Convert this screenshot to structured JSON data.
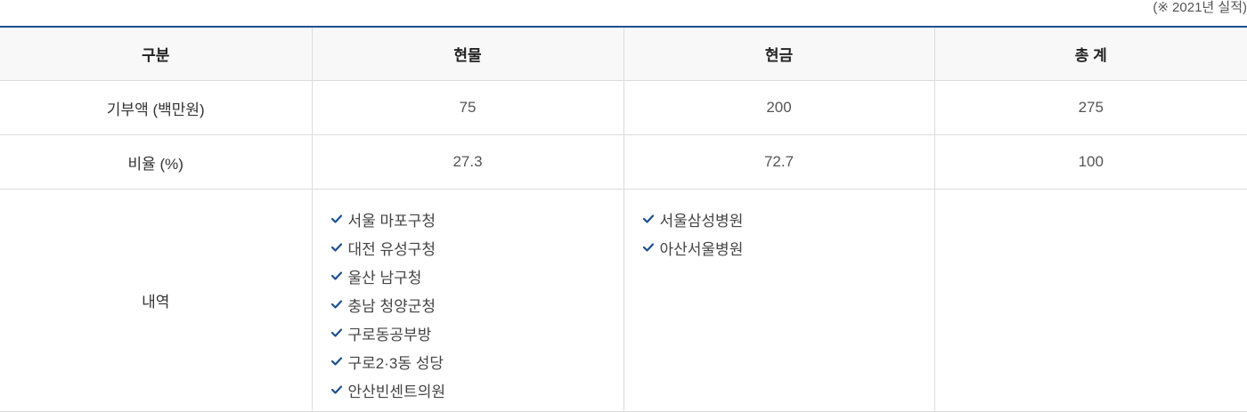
{
  "note": "(※ 2021년 실적)",
  "colors": {
    "accent": "#1f4f8f",
    "check": "#1f4f8f"
  },
  "table": {
    "headers": [
      "구분",
      "현물",
      "현금",
      "총 계"
    ],
    "rows": [
      {
        "label": "기부액 (백만원)",
        "values": [
          "75",
          "200",
          "275"
        ]
      },
      {
        "label": "비율 (%)",
        "values": [
          "27.3",
          "72.7",
          "100"
        ]
      }
    ],
    "details": {
      "label": "내역",
      "in_kind": [
        "서울 마포구청",
        "대전 유성구청",
        "울산 남구청",
        "충남 청양군청",
        "구로동공부방",
        "구로2·3동 성당",
        "안산빈센트의원"
      ],
      "cash": [
        "서울삼성병원",
        "아산서울병원"
      ],
      "total": []
    }
  }
}
